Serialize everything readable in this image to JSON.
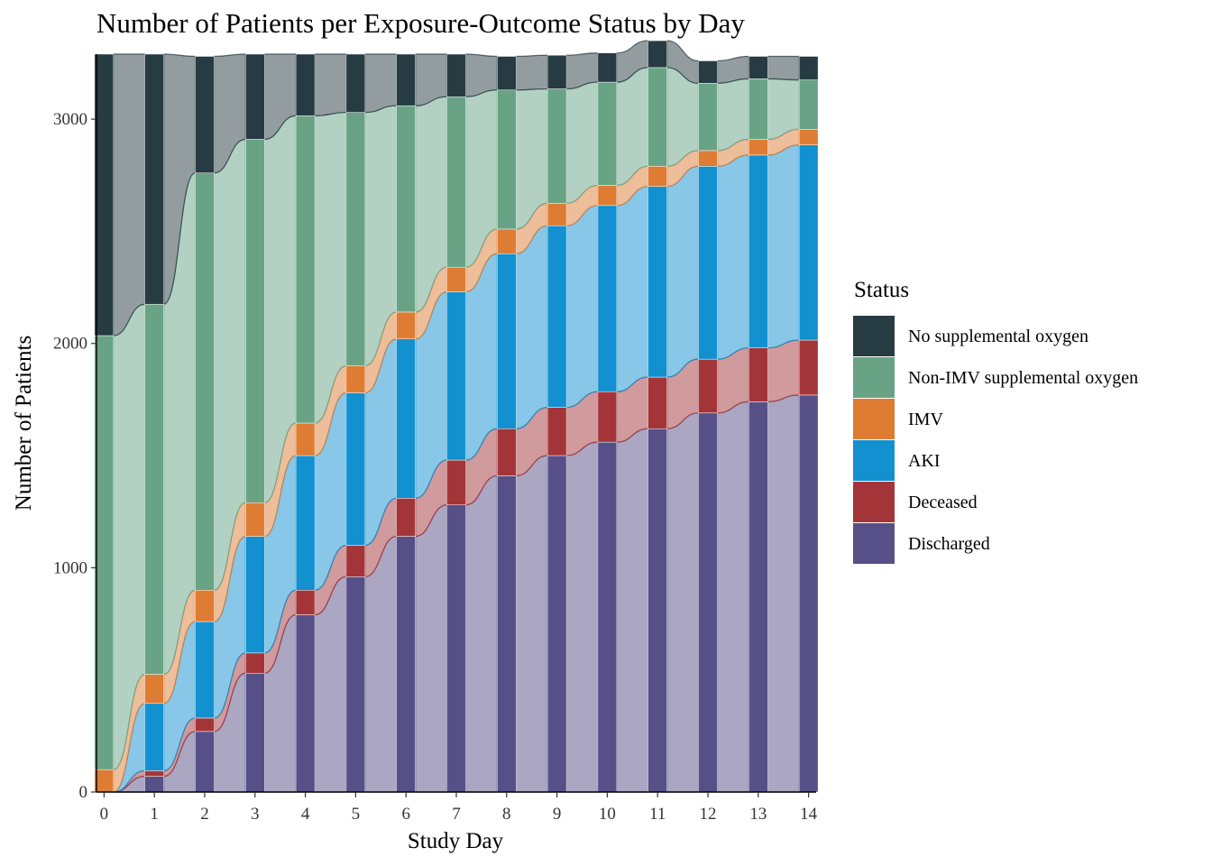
{
  "chart_data": {
    "type": "area",
    "title": "Number of Patients per Exposure-Outcome Status by Day",
    "xlabel": "Study Day",
    "ylabel": "Number of Patients",
    "x": [
      0,
      1,
      2,
      3,
      4,
      5,
      6,
      7,
      8,
      9,
      10,
      11,
      12,
      13,
      14
    ],
    "xlim": [
      -0.15,
      14.15
    ],
    "ylim": [
      0,
      3290
    ],
    "yticks": [
      0,
      1000,
      2000,
      3000
    ],
    "legend_title": "Status",
    "legend_position": "right",
    "grid": false,
    "series": [
      {
        "name": "Discharged",
        "color": "#574f87",
        "values": [
          0,
          70,
          270,
          530,
          790,
          960,
          1140,
          1280,
          1410,
          1500,
          1560,
          1620,
          1690,
          1740,
          1770
        ]
      },
      {
        "name": "Deceased",
        "color": "#a33539",
        "values": [
          0,
          25,
          60,
          90,
          110,
          140,
          170,
          200,
          210,
          215,
          225,
          230,
          240,
          240,
          245
        ]
      },
      {
        "name": "AKI",
        "color": "#1290cf",
        "values": [
          0,
          300,
          430,
          520,
          600,
          680,
          710,
          750,
          780,
          810,
          830,
          850,
          860,
          860,
          870
        ]
      },
      {
        "name": "IMV",
        "color": "#de7c33",
        "values": [
          100,
          130,
          140,
          150,
          145,
          120,
          120,
          110,
          110,
          100,
          90,
          90,
          70,
          70,
          70
        ]
      },
      {
        "name": "Non-IMV supplemental oxygen",
        "color": "#68a385",
        "values": [
          1935,
          1650,
          1860,
          1620,
          1370,
          1130,
          920,
          760,
          620,
          510,
          460,
          440,
          300,
          270,
          220
        ]
      },
      {
        "name": "No supplemental oxygen",
        "color": "#273b42",
        "values": [
          1255,
          1115,
          520,
          380,
          275,
          260,
          230,
          190,
          150,
          150,
          130,
          120,
          100,
          100,
          105
        ]
      }
    ],
    "legend": [
      {
        "name": "No supplemental oxygen",
        "color": "#273b42"
      },
      {
        "name": "Non-IMV supplemental oxygen",
        "color": "#68a385"
      },
      {
        "name": "IMV",
        "color": "#de7c33"
      },
      {
        "name": "AKI",
        "color": "#1290cf"
      },
      {
        "name": "Deceased",
        "color": "#a33539"
      },
      {
        "name": "Discharged",
        "color": "#574f87"
      }
    ]
  }
}
